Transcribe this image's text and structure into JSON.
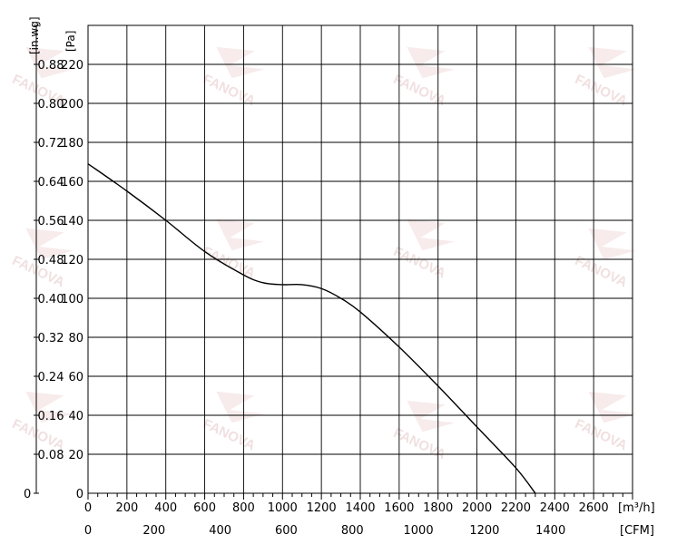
{
  "chart_data": {
    "type": "line",
    "x_unit_primary": "[m³/h]",
    "x_unit_secondary": "[CFM]",
    "y_unit_left": "[in.wg]",
    "y_unit_right": "[Pa]",
    "xlim": [
      0,
      2800
    ],
    "ylim": [
      0,
      240
    ],
    "grid": true,
    "x_ticks": [
      "0",
      "200",
      "400",
      "600",
      "800",
      "1000",
      "1200",
      "1400",
      "1600",
      "1800",
      "2000",
      "2200",
      "2400",
      "2600"
    ],
    "x_ticks_cfm": [
      "0",
      "200",
      "400",
      "600",
      "800",
      "1000",
      "1200",
      "1400"
    ],
    "y_ticks_pa": [
      "0",
      "20",
      "40",
      "60",
      "80",
      "100",
      "120",
      "140",
      "160",
      "180",
      "200",
      "220"
    ],
    "y_ticks_inwg": [
      "0",
      "0.08",
      "0.16",
      "0.24",
      "0.32",
      "0.40",
      "0.48",
      "0.56",
      "0.64",
      "0.72",
      "0.80",
      "0.88"
    ],
    "series": [
      {
        "color": "#000000",
        "x": [
          0,
          200,
          400,
          600,
          800,
          900,
          1000,
          1100,
          1200,
          1300,
          1400,
          1600,
          1800,
          2000,
          2200,
          2300
        ],
        "y": [
          169,
          155,
          140,
          124,
          112,
          108,
          107,
          107,
          105,
          100,
          93,
          75,
          55,
          34,
          13,
          0
        ]
      }
    ],
    "watermark_text": "FANOVA"
  }
}
